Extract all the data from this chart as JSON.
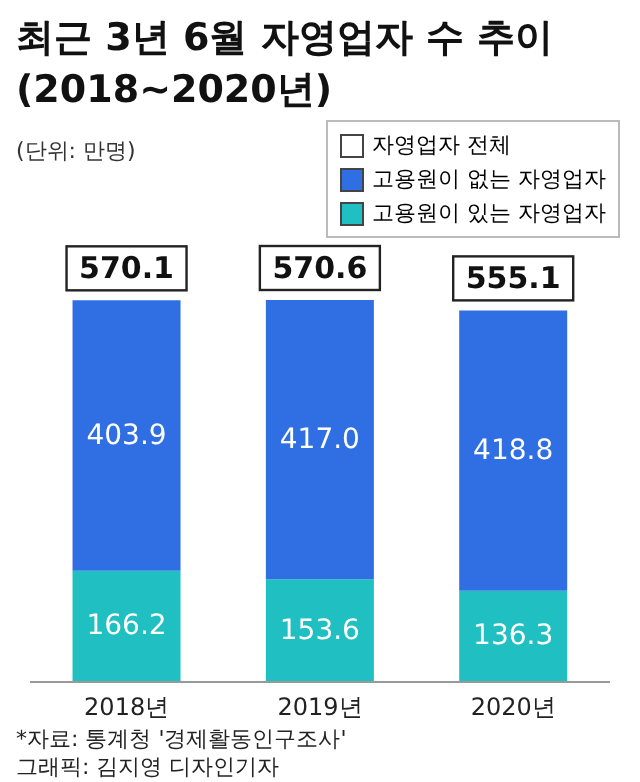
{
  "chart_data": {
    "type": "bar",
    "title": "최근 3년 6월 자영업자 수 추이\n(2018~2020년)",
    "subtitle": "(단위: 만명)",
    "categories": [
      "2018년",
      "2019년",
      "2020년"
    ],
    "stacked": true,
    "tick_labels": "x",
    "legend": "top right",
    "totals": [
      "570.1",
      "570.6",
      "555.1"
    ],
    "series": [
      {
        "name": "고용원이 있는 자영업자",
        "color": "#1fbfc2",
        "values": [
          166.2,
          153.6,
          136.3
        ],
        "value_labels": [
          "166.2",
          "153.6",
          "136.3"
        ]
      },
      {
        "name": "고용원이 없는 자영업자",
        "color": "#2f6fe3",
        "values": [
          403.9,
          417.0,
          418.8
        ],
        "value_labels": [
          "403.9",
          "417.0",
          "418.8"
        ]
      }
    ],
    "annotations": [
      "자영업자 전체",
      "*자료: 통계청 '경제활동인구조사'",
      "그래픽: 김지영 디자인기자"
    ]
  }
}
